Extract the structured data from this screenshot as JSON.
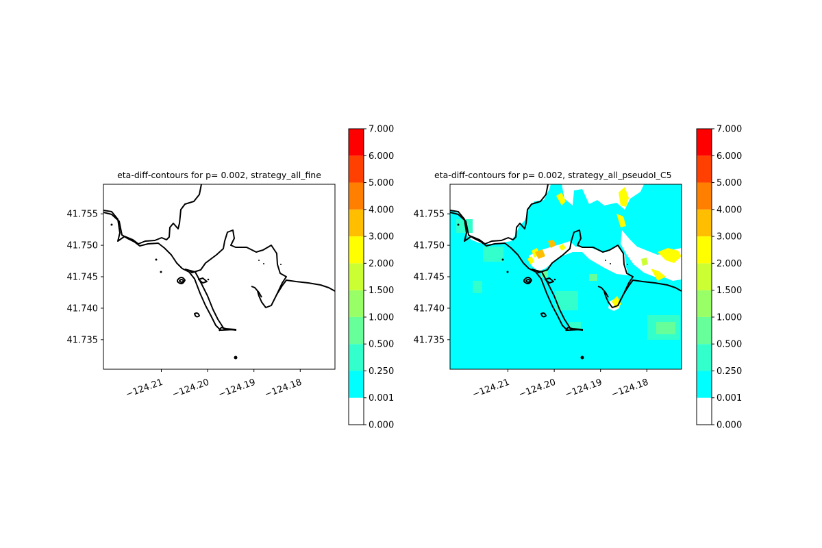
{
  "colorbar": {
    "levels": [
      "0.000",
      "0.001",
      "0.250",
      "0.500",
      "1.000",
      "1.500",
      "2.000",
      "3.000",
      "4.000",
      "5.000",
      "6.000",
      "7.000"
    ],
    "colors": [
      "#ffffff",
      "#00ffff",
      "#33ffcc",
      "#66ff99",
      "#99ff66",
      "#ccff33",
      "#ffff00",
      "#ffbf00",
      "#ff8000",
      "#ff4000",
      "#ff0000"
    ]
  },
  "chart_data": [
    {
      "type": "heatmap",
      "title": "eta-diff-contours for p= 0.002, strategy_all_fine",
      "xlabel": "",
      "ylabel": "",
      "xlim": [
        -124.2225,
        -124.1725
      ],
      "ylim": [
        41.7303,
        41.7597
      ],
      "xticks": [
        -124.21,
        -124.2,
        -124.19,
        -124.18
      ],
      "xtick_labels": [
        "−124.21",
        "−124.20",
        "−124.19",
        "−124.18"
      ],
      "yticks": [
        41.735,
        41.74,
        41.745,
        41.75,
        41.755
      ],
      "ytick_labels": [
        "41.735",
        "41.740",
        "41.745",
        "41.750",
        "41.755"
      ],
      "field": "none",
      "colorbar_range": [
        0,
        7
      ]
    },
    {
      "type": "heatmap",
      "title": "eta-diff-contours for p= 0.002, strategy_all_pseudoI_C5",
      "xlabel": "",
      "ylabel": "",
      "xlim": [
        -124.2225,
        -124.1725
      ],
      "ylim": [
        41.7303,
        41.7597
      ],
      "xticks": [
        -124.21,
        -124.2,
        -124.19,
        -124.18
      ],
      "xtick_labels": [
        "−124.21",
        "−124.20",
        "−124.19",
        "−124.18"
      ],
      "yticks": [
        41.735,
        41.74,
        41.745,
        41.75,
        41.755
      ],
      "ytick_labels": [
        "41.735",
        "41.740",
        "41.745",
        "41.750",
        "41.755"
      ],
      "field": "water_mostly_0.001_to_0.25",
      "colorbar_range": [
        0,
        7
      ]
    }
  ]
}
